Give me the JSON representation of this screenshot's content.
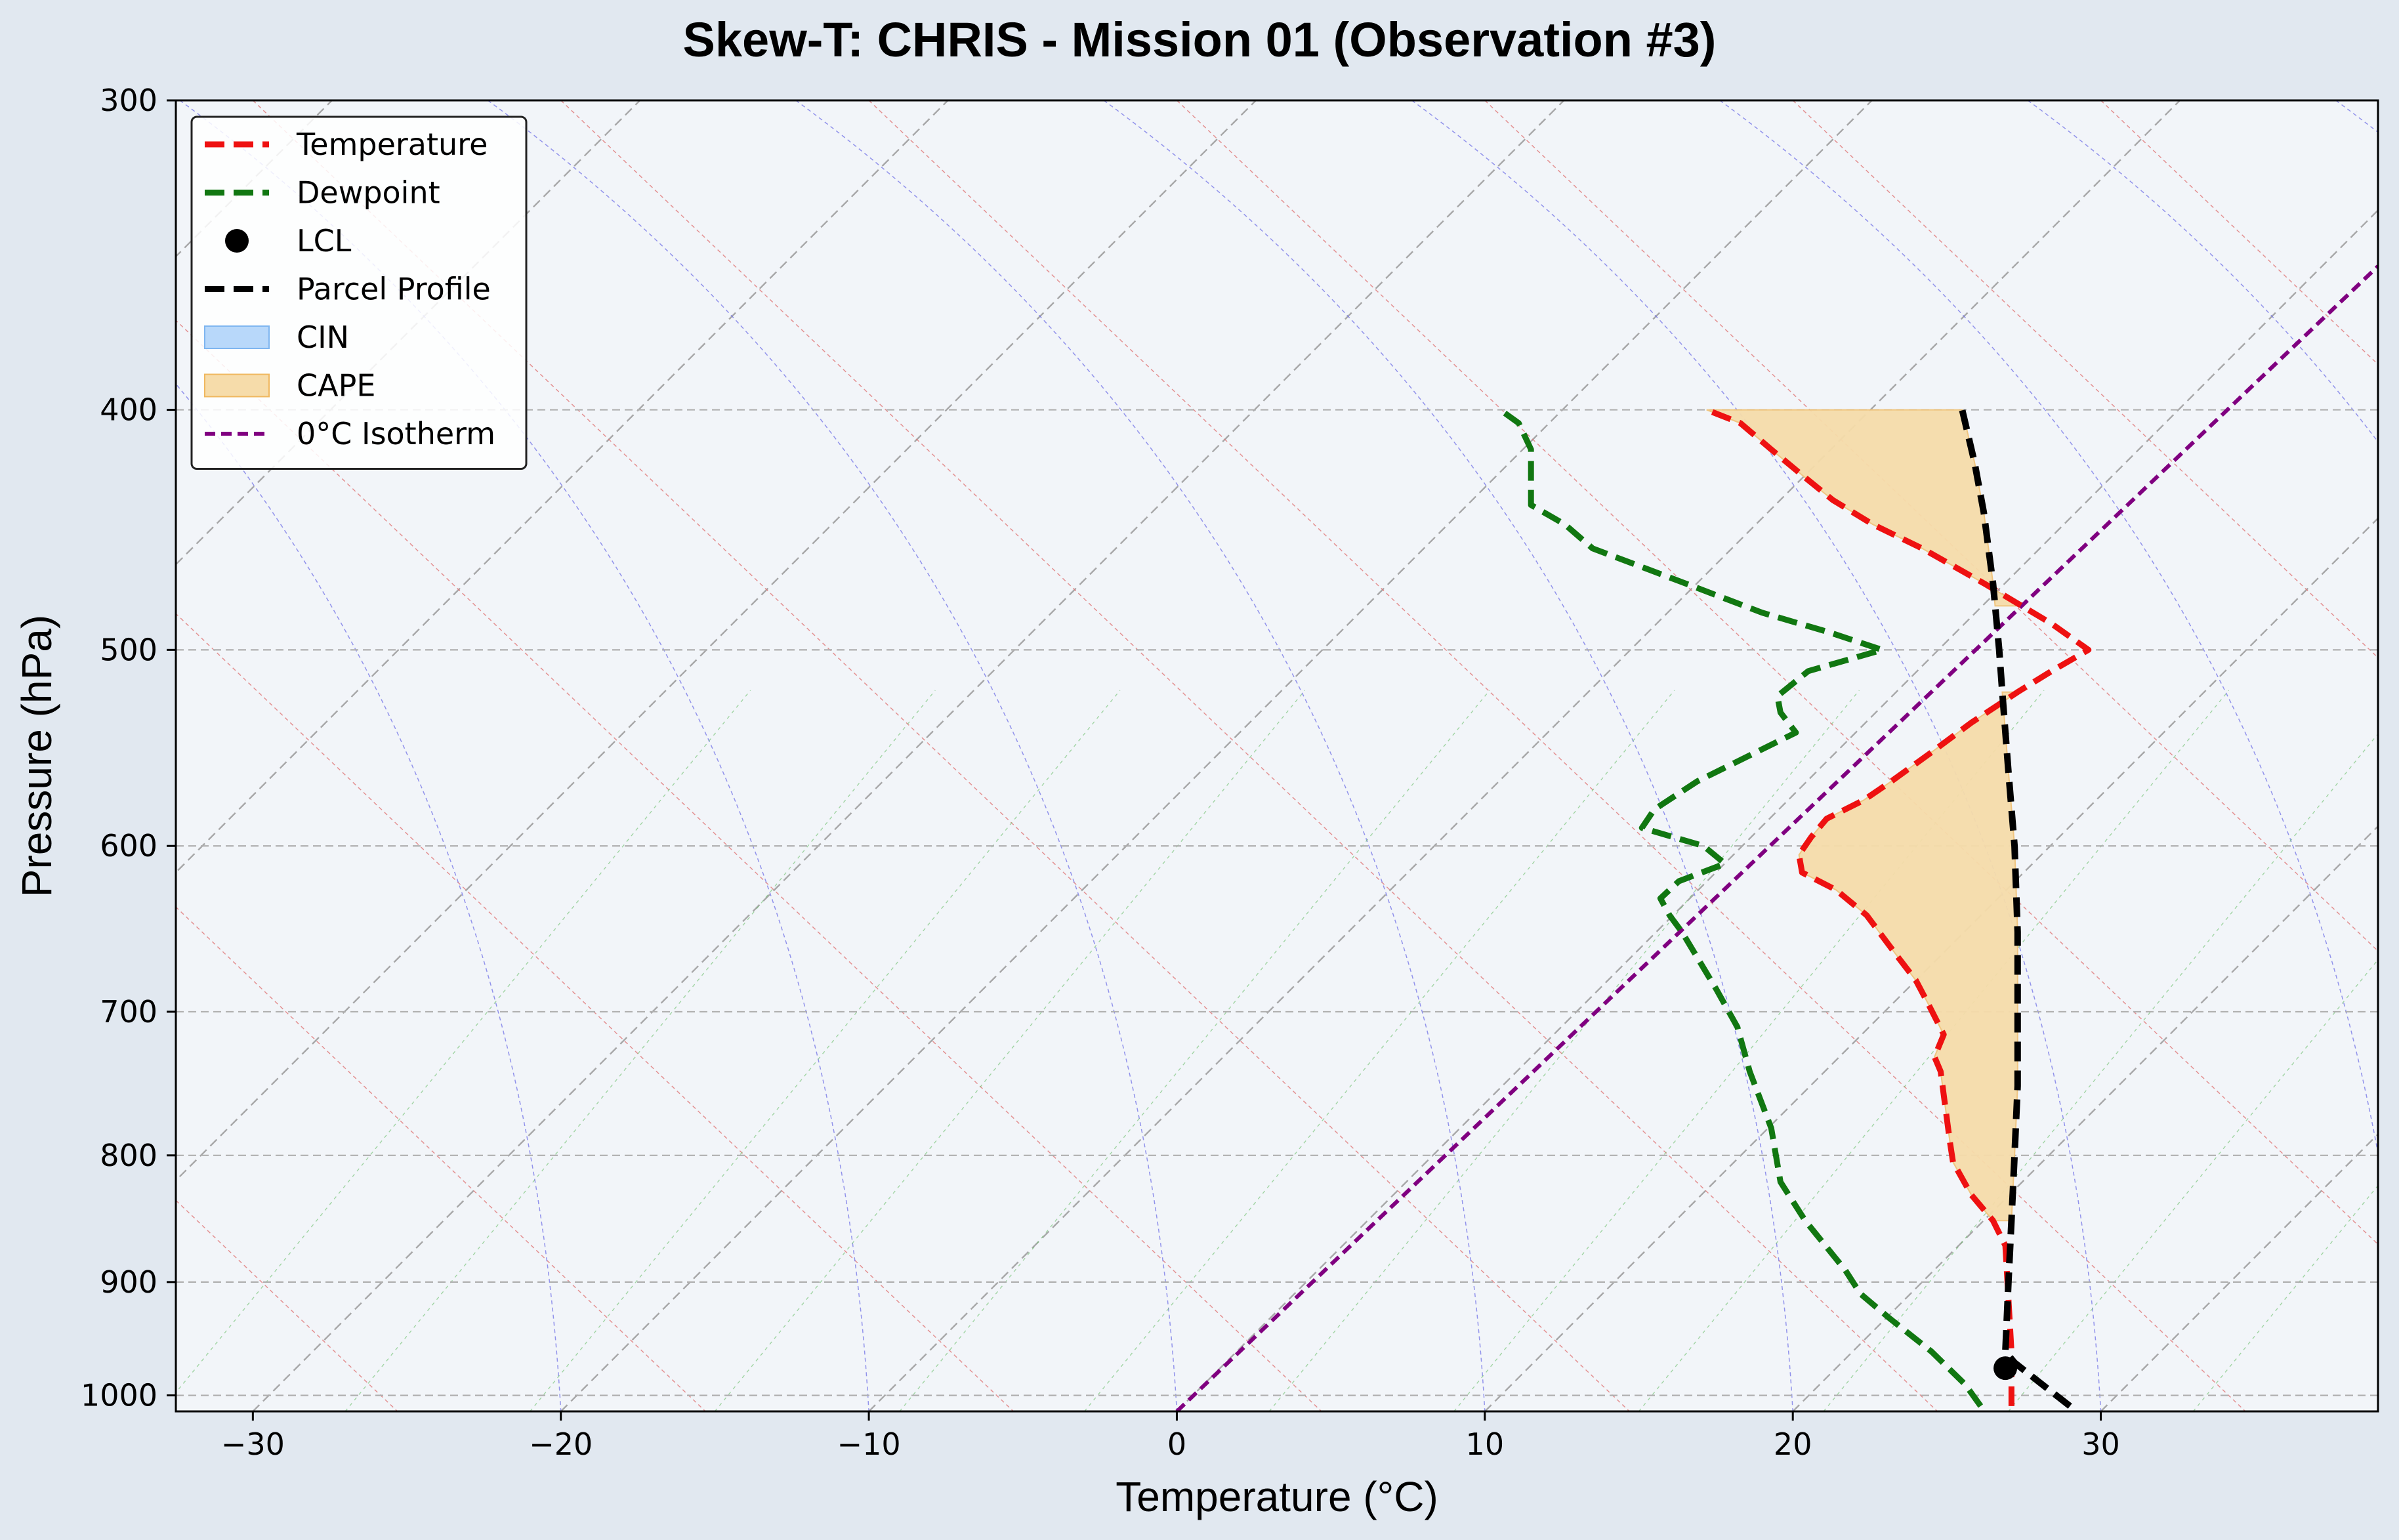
{
  "chart_data": {
    "type": "line",
    "title": "Skew-T: CHRIS - Mission 01 (Observation #3)",
    "xlabel": "Temperature (°C)",
    "ylabel": "Pressure (hPa)",
    "xlim": [
      -32.5,
      39
    ],
    "ylim": [
      1015,
      300
    ],
    "y_scale": "log",
    "x_ticks": [
      -30,
      -20,
      -10,
      0,
      10,
      20,
      30
    ],
    "x_tick_labels": [
      "−30",
      "−20",
      "−10",
      "0",
      "10",
      "20",
      "30"
    ],
    "y_ticks": [
      300,
      400,
      500,
      600,
      700,
      800,
      900,
      1000
    ],
    "y_tick_labels": [
      "300",
      "400",
      "500",
      "600",
      "700",
      "800",
      "900",
      "1000"
    ],
    "grid": true,
    "legend_position": "top-left",
    "legend": [
      {
        "label": "Temperature",
        "style": "dashed-line",
        "color": "#ee1111"
      },
      {
        "label": "Dewpoint",
        "style": "dashed-line",
        "color": "#117711"
      },
      {
        "label": "LCL",
        "style": "marker",
        "color": "#000000"
      },
      {
        "label": "Parcel Profile",
        "style": "dashed-line",
        "color": "#000000"
      },
      {
        "label": "CIN",
        "style": "patch",
        "color": "#b8d8fa",
        "edge": "#7fb6f0"
      },
      {
        "label": "CAPE",
        "style": "patch",
        "color": "#f6dcaa",
        "edge": "#f0b860"
      },
      {
        "label": "0°C Isotherm",
        "style": "dashed-line",
        "color": "#800080"
      }
    ],
    "series": [
      {
        "name": "Temperature",
        "color": "#ee1111",
        "points": [
          {
            "p": 1010,
            "x": 27.1
          },
          {
            "p": 960,
            "x": 27.1
          },
          {
            "p": 870,
            "x": 26.9
          },
          {
            "p": 850,
            "x": 26.5
          },
          {
            "p": 830,
            "x": 25.8
          },
          {
            "p": 805,
            "x": 25.2
          },
          {
            "p": 790,
            "x": 25.1
          },
          {
            "p": 740,
            "x": 24.8
          },
          {
            "p": 730,
            "x": 24.6
          },
          {
            "p": 715,
            "x": 24.9
          },
          {
            "p": 695,
            "x": 24.4
          },
          {
            "p": 680,
            "x": 24.0
          },
          {
            "p": 665,
            "x": 23.4
          },
          {
            "p": 640,
            "x": 22.4
          },
          {
            "p": 625,
            "x": 21.4
          },
          {
            "p": 615,
            "x": 20.3
          },
          {
            "p": 605,
            "x": 20.2
          },
          {
            "p": 595,
            "x": 20.6
          },
          {
            "p": 585,
            "x": 21.1
          },
          {
            "p": 575,
            "x": 22.3
          },
          {
            "p": 565,
            "x": 23.2
          },
          {
            "p": 550,
            "x": 24.5
          },
          {
            "p": 535,
            "x": 25.8
          },
          {
            "p": 520,
            "x": 27.3
          },
          {
            "p": 510,
            "x": 28.4
          },
          {
            "p": 500,
            "x": 29.6
          },
          {
            "p": 488,
            "x": 28.4
          },
          {
            "p": 470,
            "x": 26.2
          },
          {
            "p": 455,
            "x": 24.2
          },
          {
            "p": 445,
            "x": 22.6
          },
          {
            "p": 435,
            "x": 21.3
          },
          {
            "p": 425,
            "x": 20.3
          },
          {
            "p": 415,
            "x": 19.3
          },
          {
            "p": 405,
            "x": 18.3
          },
          {
            "p": 400,
            "x": 17.2
          }
        ]
      },
      {
        "name": "Dewpoint",
        "color": "#117711",
        "points": [
          {
            "p": 1010,
            "x": 26.1
          },
          {
            "p": 990,
            "x": 25.6
          },
          {
            "p": 960,
            "x": 24.5
          },
          {
            "p": 930,
            "x": 23.1
          },
          {
            "p": 910,
            "x": 22.2
          },
          {
            "p": 890,
            "x": 21.7
          },
          {
            "p": 850,
            "x": 20.4
          },
          {
            "p": 820,
            "x": 19.6
          },
          {
            "p": 780,
            "x": 19.3
          },
          {
            "p": 740,
            "x": 18.6
          },
          {
            "p": 710,
            "x": 18.2
          },
          {
            "p": 685,
            "x": 17.5
          },
          {
            "p": 650,
            "x": 16.4
          },
          {
            "p": 640,
            "x": 16.0
          },
          {
            "p": 630,
            "x": 15.7
          },
          {
            "p": 620,
            "x": 16.3
          },
          {
            "p": 610,
            "x": 17.8
          },
          {
            "p": 600,
            "x": 17.1
          },
          {
            "p": 590,
            "x": 15.1
          },
          {
            "p": 580,
            "x": 15.5
          },
          {
            "p": 565,
            "x": 16.9
          },
          {
            "p": 550,
            "x": 18.8
          },
          {
            "p": 540,
            "x": 20.1
          },
          {
            "p": 530,
            "x": 19.6
          },
          {
            "p": 522,
            "x": 19.5
          },
          {
            "p": 510,
            "x": 20.5
          },
          {
            "p": 500,
            "x": 22.9
          },
          {
            "p": 492,
            "x": 21.2
          },
          {
            "p": 483,
            "x": 19.0
          },
          {
            "p": 470,
            "x": 16.5
          },
          {
            "p": 455,
            "x": 13.5
          },
          {
            "p": 445,
            "x": 12.6
          },
          {
            "p": 437,
            "x": 11.5
          },
          {
            "p": 415,
            "x": 11.5
          },
          {
            "p": 405,
            "x": 11.1
          },
          {
            "p": 400,
            "x": 10.5
          }
        ]
      },
      {
        "name": "Parcel Profile",
        "color": "#000000",
        "points": [
          {
            "p": 1010,
            "x": 29.0
          },
          {
            "p": 990,
            "x": 28.1
          },
          {
            "p": 970,
            "x": 27.2
          },
          {
            "p": 960,
            "x": 26.9
          },
          {
            "p": 900,
            "x": 27.0
          },
          {
            "p": 850,
            "x": 27.1
          },
          {
            "p": 800,
            "x": 27.2
          },
          {
            "p": 750,
            "x": 27.3
          },
          {
            "p": 700,
            "x": 27.3
          },
          {
            "p": 650,
            "x": 27.3
          },
          {
            "p": 600,
            "x": 27.2
          },
          {
            "p": 560,
            "x": 27.0
          },
          {
            "p": 520,
            "x": 26.8
          },
          {
            "p": 500,
            "x": 26.7
          },
          {
            "p": 470,
            "x": 26.5
          },
          {
            "p": 440,
            "x": 26.2
          },
          {
            "p": 420,
            "x": 25.9
          },
          {
            "p": 400,
            "x": 25.5
          }
        ]
      }
    ],
    "lcl": {
      "p": 975,
      "x": 26.9
    },
    "cape_regions": [
      {
        "p_bottom": 850,
        "p_top": 520
      },
      {
        "p_bottom": 480,
        "p_top": 400
      }
    ],
    "freezing_isotherm": [
      {
        "p": 1015,
        "x": 0
      },
      {
        "p": 350,
        "x": 39
      }
    ]
  },
  "colors": {
    "page_background": "#e1e8f0",
    "plot_background": "#f2f5f9"
  }
}
